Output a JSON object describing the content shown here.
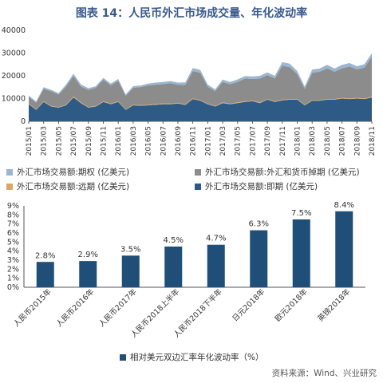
{
  "title": "图表 14：人民币外汇市场成交量、年化波动率",
  "source": "资料来源：Wind、兴业研究",
  "colors": {
    "spot": "#2d5b86",
    "forward": "#d9a868",
    "swap": "#8c8c8c",
    "option": "#9ab6d1",
    "bar": "#1f4e79"
  },
  "chart_data": [
    {
      "type": "area",
      "title": "",
      "yticks": [
        "0",
        "10000",
        "20000",
        "30000",
        "40000"
      ],
      "ylim": [
        0,
        40000
      ],
      "x_tick_labels": [
        "2015/01",
        "2015/03",
        "2015/05",
        "2015/07",
        "2015/09",
        "2015/11",
        "2016/01",
        "2016/03",
        "2016/05",
        "2016/07",
        "2016/09",
        "2016/11",
        "2017/01",
        "2017/03",
        "2017/05",
        "2017/07",
        "2017/09",
        "2017/11",
        "2018/01",
        "2018/03",
        "2018/05",
        "2018/07",
        "2018/09",
        "2018/11"
      ],
      "legend": [
        {
          "key": "option",
          "label": "外汇市场交易额:期权 (亿美元)"
        },
        {
          "key": "swap",
          "label": "外汇市场交易额:外汇和货币掉期 (亿美元)"
        },
        {
          "key": "forward",
          "label": "外汇市场交易额:远期 (亿美元)"
        },
        {
          "key": "spot",
          "label": "外汇市场交易额:即期 (亿美元)"
        }
      ],
      "x": [
        "2015/01",
        "2015/02",
        "2015/03",
        "2015/04",
        "2015/05",
        "2015/06",
        "2015/07",
        "2015/08",
        "2015/09",
        "2015/10",
        "2015/11",
        "2015/12",
        "2016/01",
        "2016/02",
        "2016/03",
        "2016/04",
        "2016/05",
        "2016/06",
        "2016/07",
        "2016/08",
        "2016/09",
        "2016/10",
        "2016/11",
        "2016/12",
        "2017/01",
        "2017/02",
        "2017/03",
        "2017/04",
        "2017/05",
        "2017/06",
        "2017/07",
        "2017/08",
        "2017/09",
        "2017/10",
        "2017/11",
        "2017/12",
        "2018/01",
        "2018/02",
        "2018/03",
        "2018/04",
        "2018/05",
        "2018/06",
        "2018/07",
        "2018/08",
        "2018/09",
        "2018/10",
        "2018/11"
      ],
      "series": [
        {
          "key": "spot",
          "values": [
            7500,
            5000,
            8500,
            6500,
            6000,
            7000,
            10500,
            8000,
            6000,
            6500,
            8500,
            7500,
            8500,
            5000,
            7000,
            6800,
            7000,
            7300,
            7500,
            7500,
            7800,
            7200,
            9800,
            9000,
            7500,
            6500,
            8000,
            7500,
            8000,
            8500,
            8800,
            8000,
            9500,
            8500,
            9200,
            9500,
            9500,
            7000,
            9000,
            9000,
            9500,
            9500,
            10000,
            9800,
            10000,
            9800,
            10500
          ]
        },
        {
          "key": "forward",
          "values": [
            300,
            200,
            300,
            250,
            250,
            300,
            400,
            300,
            250,
            250,
            300,
            300,
            300,
            200,
            250,
            250,
            250,
            300,
            300,
            300,
            300,
            300,
            300,
            300,
            250,
            250,
            300,
            300,
            300,
            300,
            300,
            300,
            300,
            300,
            300,
            300,
            300,
            250,
            300,
            300,
            300,
            300,
            300,
            300,
            300,
            300,
            300
          ]
        },
        {
          "key": "swap",
          "values": [
            3000,
            3000,
            5500,
            6500,
            5500,
            8000,
            9000,
            7000,
            7500,
            8000,
            9500,
            8000,
            9000,
            6000,
            7500,
            8000,
            8500,
            8500,
            8500,
            9000,
            8000,
            8500,
            12000,
            12000,
            7500,
            6500,
            9000,
            8500,
            9000,
            10000,
            9500,
            10500,
            10500,
            10000,
            15000,
            14000,
            11000,
            7000,
            12000,
            12500,
            13500,
            12000,
            13000,
            14000,
            12500,
            13500,
            17500
          ]
        },
        {
          "key": "option",
          "values": [
            500,
            500,
            700,
            600,
            600,
            800,
            1000,
            900,
            800,
            700,
            800,
            800,
            800,
            600,
            700,
            700,
            800,
            900,
            1000,
            900,
            900,
            1100,
            1300,
            1300,
            900,
            800,
            1000,
            1000,
            1100,
            1100,
            1100,
            1200,
            1200,
            1200,
            1500,
            1500,
            1300,
            1000,
            1400,
            1400,
            1500,
            1400,
            1500,
            1500,
            1400,
            1500,
            1600
          ]
        }
      ]
    },
    {
      "type": "bar",
      "title": "",
      "categories": [
        "人民币2015年",
        "人民币2016年",
        "人民币2017年",
        "人民币2018上半年",
        "人民币2018下半年",
        "日元2018年",
        "欧元2018年",
        "英镑2018年"
      ],
      "values": [
        2.8,
        2.9,
        3.5,
        4.5,
        4.7,
        6.3,
        7.5,
        8.4
      ],
      "data_labels": [
        "2.8%",
        "2.9%",
        "3.5%",
        "4.5%",
        "4.7%",
        "6.3%",
        "7.5%",
        "8.4%"
      ],
      "yticks": [
        "0%",
        "1%",
        "2%",
        "3%",
        "4%",
        "5%",
        "6%",
        "7%",
        "8%",
        "9%"
      ],
      "ylim": [
        0,
        9
      ],
      "legend": "相对美元双边汇率年化波动率（%）"
    }
  ]
}
